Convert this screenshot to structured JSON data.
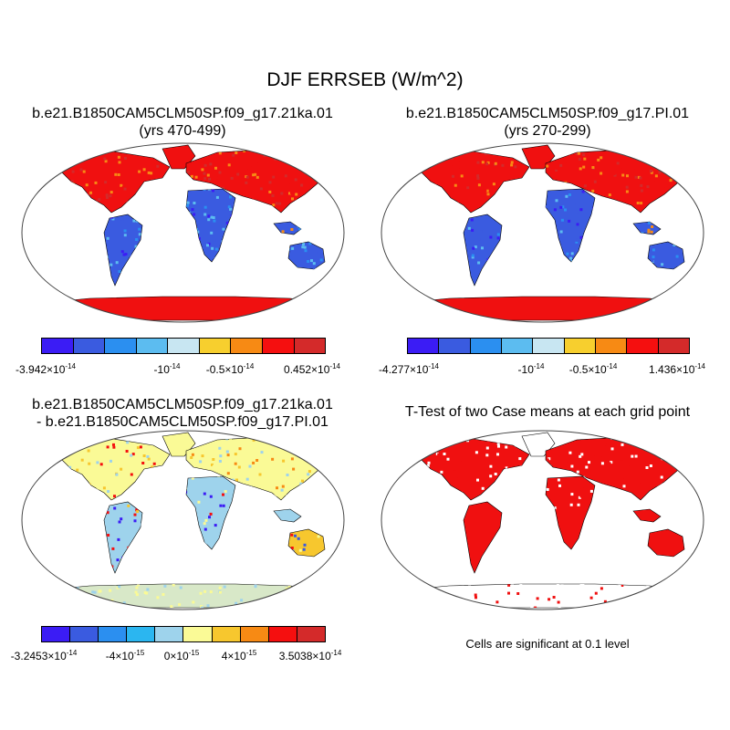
{
  "title": "DJF ERRSEB (W/m^2)",
  "panels": [
    {
      "title_line1": "b.e21.B1850CAM5CLM50SP.f09_g17.21ka.01",
      "title_line2": "(yrs 470-499)"
    },
    {
      "title_line1": "b.e21.B1850CAM5CLM50SP.f09_g17.PI.01",
      "title_line2": "(yrs 270-299)"
    },
    {
      "title_line1": "b.e21.B1850CAM5CLM50SP.f09_g17.21ka.01",
      "title_line2": "- b.e21.B1850CAM5CLM50SP.f09_g17.PI.01"
    },
    {
      "title_line1": "T-Test of two Case means at each grid point",
      "title_line2": ""
    }
  ],
  "colorbars": {
    "cb1": {
      "colors": [
        "#3b1cf5",
        "#3a5be0",
        "#2b8ff0",
        "#5cbcf0",
        "#c8e6f2",
        "#f7cf2e",
        "#f78a14",
        "#f50f0f",
        "#d42a2a"
      ],
      "labels": [
        {
          "mant": "-3.942×10",
          "exp": "-14"
        },
        {
          "mant": "-10",
          "exp": "-14"
        },
        {
          "mant": "-0.5×10",
          "exp": "-14"
        },
        {
          "mant": "0.452×10",
          "exp": "-14"
        }
      ]
    },
    "cb2": {
      "colors": [
        "#3b1cf5",
        "#3a5be0",
        "#2b8ff0",
        "#5cbcf0",
        "#c8e6f2",
        "#f7cf2e",
        "#f78a14",
        "#f50f0f",
        "#d42a2a"
      ],
      "labels": [
        {
          "mant": "-4.277×10",
          "exp": "-14"
        },
        {
          "mant": "-10",
          "exp": "-14"
        },
        {
          "mant": "-0.5×10",
          "exp": "-14"
        },
        {
          "mant": "1.436×10",
          "exp": "-14"
        }
      ]
    },
    "cb3": {
      "colors": [
        "#3b1cf5",
        "#3a5be0",
        "#2b8ff0",
        "#2bb6f0",
        "#9ed3ec",
        "#fafa96",
        "#f7c72e",
        "#f78a14",
        "#f50f0f",
        "#d42a2a"
      ],
      "labels": [
        {
          "mant": "-3.2453×10",
          "exp": "-14"
        },
        {
          "mant": "-4×10",
          "exp": "-15"
        },
        {
          "mant": "0×10",
          "exp": "-15"
        },
        {
          "mant": "4×10",
          "exp": "-15"
        },
        {
          "mant": "3.5038×10",
          "exp": "-14"
        }
      ]
    }
  },
  "significance_note": "Cells are significant at 0.1 level"
}
